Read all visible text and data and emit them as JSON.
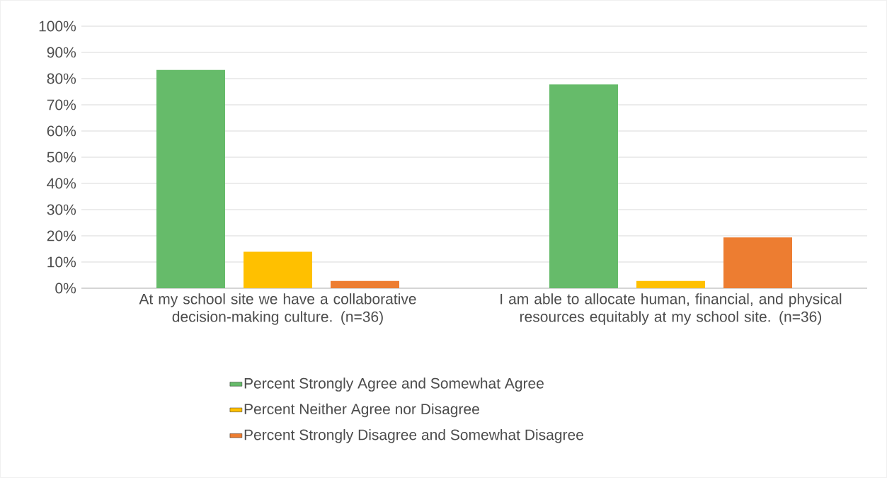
{
  "chart_data": {
    "type": "bar",
    "categories": [
      "At my school site we have a collaborative decision-making culture. (n=36)",
      "I am able to allocate human, financial, and physical resources equitably at my school site. (n=36)"
    ],
    "series": [
      {
        "name": "Percent Strongly Agree and Somewhat Agree",
        "color": "#66bb6a",
        "values": [
          83.3,
          77.8
        ]
      },
      {
        "name": "Percent Neither Agree nor Disagree",
        "color": "#ffc000",
        "values": [
          13.9,
          2.8
        ]
      },
      {
        "name": "Percent Strongly Disagree and Somewhat Disagree",
        "color": "#ed7d31",
        "values": [
          2.8,
          19.4
        ]
      }
    ],
    "ylim": [
      0,
      100
    ],
    "yticks": [
      {
        "value": 0,
        "label": "0%"
      },
      {
        "value": 10,
        "label": "10%"
      },
      {
        "value": 20,
        "label": "20%"
      },
      {
        "value": 30,
        "label": "30%"
      },
      {
        "value": 40,
        "label": "40%"
      },
      {
        "value": 50,
        "label": "50%"
      },
      {
        "value": 60,
        "label": "60%"
      },
      {
        "value": 70,
        "label": "70%"
      },
      {
        "value": 80,
        "label": "80%"
      },
      {
        "value": 90,
        "label": "90%"
      },
      {
        "value": 100,
        "label": "100%"
      }
    ],
    "grid": "y",
    "legend": "bottom"
  }
}
